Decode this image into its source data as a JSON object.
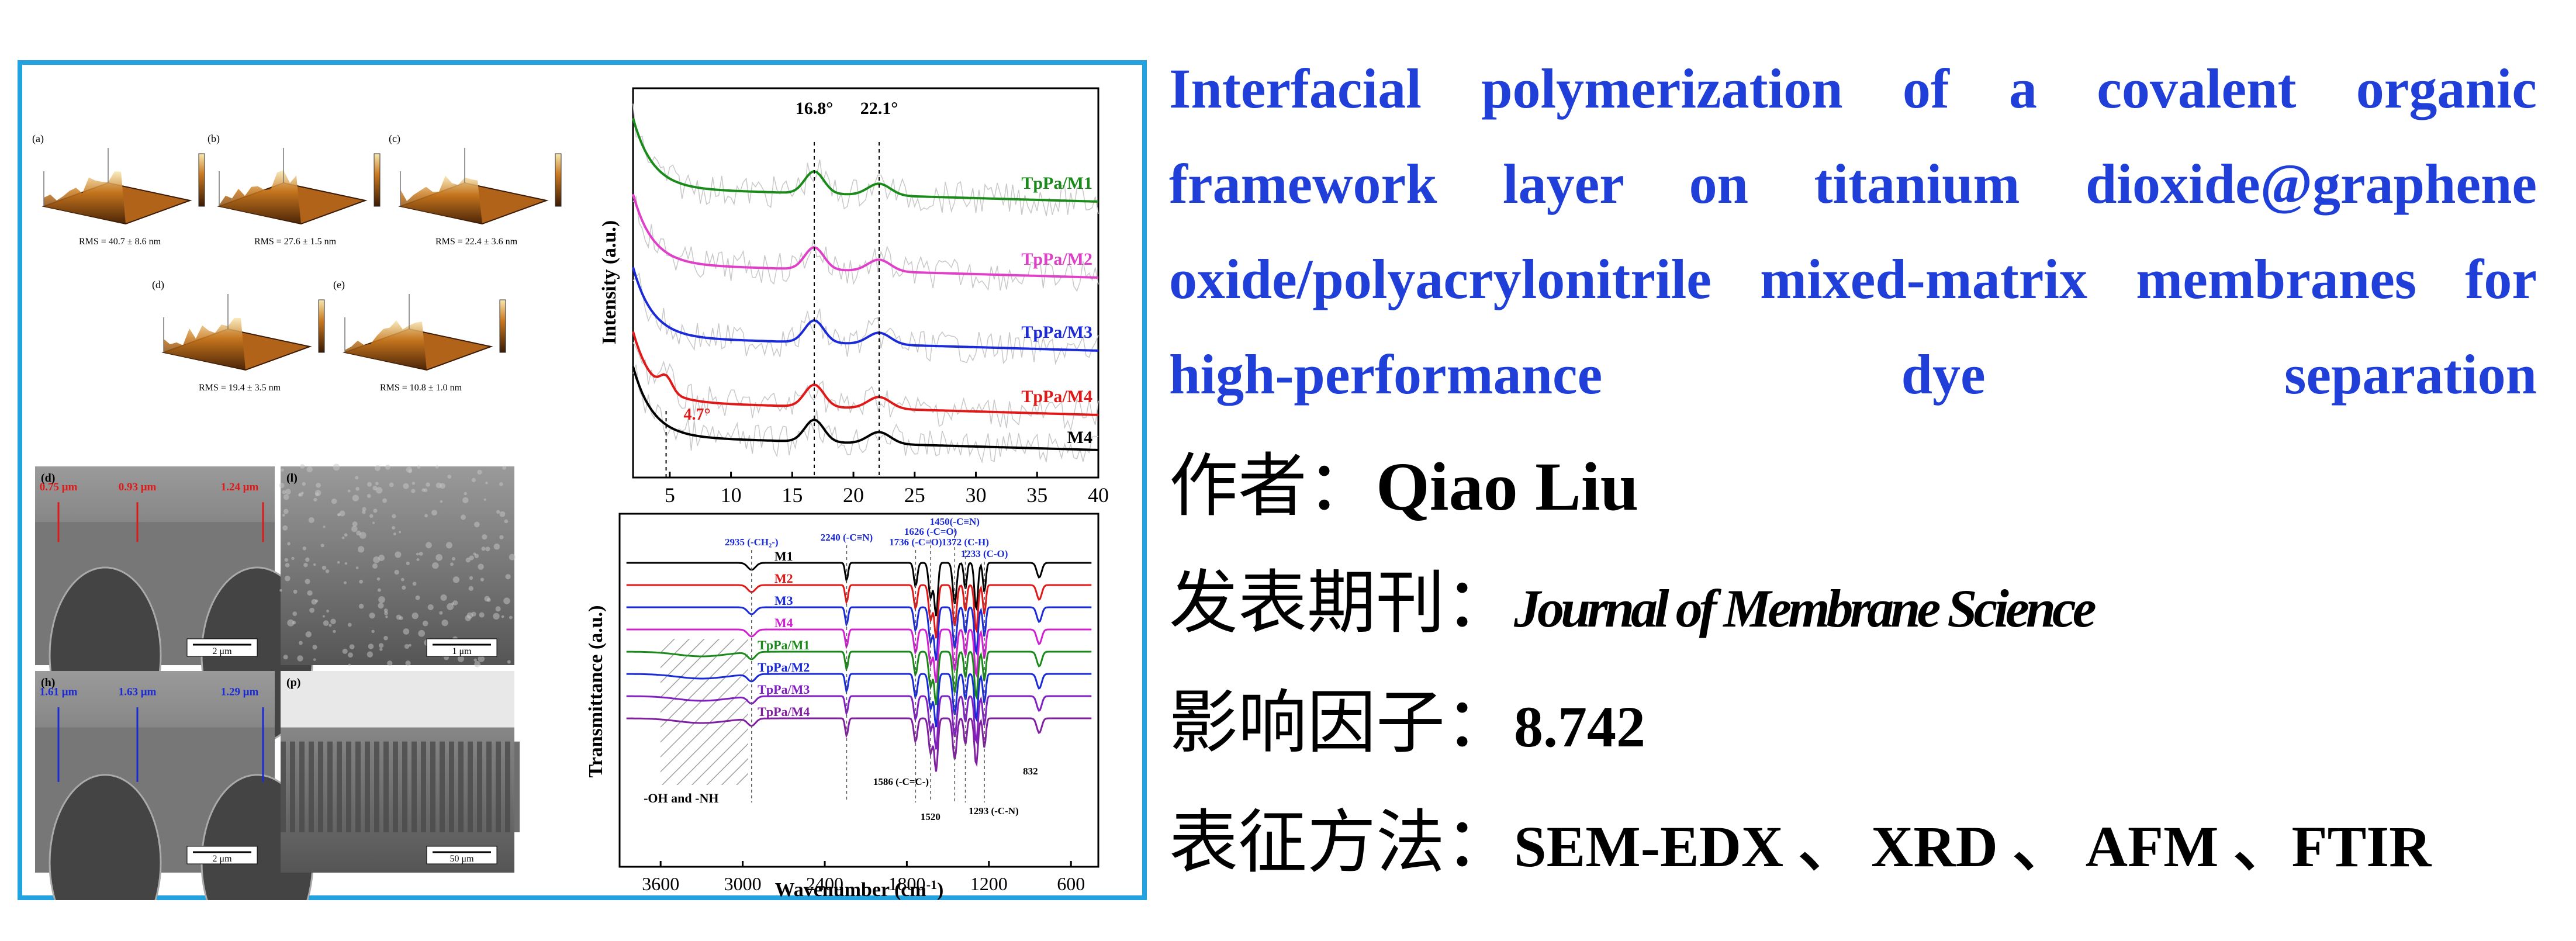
{
  "paper": {
    "title": "Interfacial polymerization of a covalent organic framework layer on titanium dioxide@graphene oxide/polyacrylonitrile mixed-matrix membranes for high-performance dye separation",
    "author_label": "作者：",
    "author": "Qiao Liu",
    "journal_label": "发表期刊：",
    "journal": "Journal of Membrane Science",
    "impact_label": "影响因子：",
    "impact_factor": "8.742",
    "methods_label": "表征方法：",
    "methods": "SEM-EDX 、 XRD 、 AFM 、FTIR"
  },
  "afm": [
    {
      "label": "(a)",
      "rms": "RMS = 40.7 ± 8.6 nm"
    },
    {
      "label": "(b)",
      "rms": "RMS = 27.6 ± 1.5 nm"
    },
    {
      "label": "(c)",
      "rms": "RMS = 22.4 ± 3.6 nm"
    },
    {
      "label": "(d)",
      "rms": "RMS = 19.4 ± 3.5 nm"
    },
    {
      "label": "(e)",
      "rms": "RMS = 10.8 ± 1.0 nm"
    }
  ],
  "sem": [
    {
      "label": "(d)",
      "scale": "2 μm",
      "thick": [
        "0.75 μm",
        "0.93 μm",
        "1.24 μm"
      ]
    },
    {
      "label": "(l)",
      "scale": "1 μm",
      "thick": []
    },
    {
      "label": "(h)",
      "scale": "2 μm",
      "thick": [
        "1.61 μm",
        "1.63 μm",
        "1.29 μm"
      ]
    },
    {
      "label": "(p)",
      "scale": "50 μm",
      "thick": []
    }
  ],
  "chart_data": [
    {
      "type": "line",
      "ylabel": "Intensity (a.u.)",
      "xlim": [
        2,
        40
      ],
      "xticks": [
        5,
        10,
        15,
        20,
        25,
        30,
        35,
        40
      ],
      "series": [
        {
          "name": "TpPa/M1",
          "color": "#1a8a1a"
        },
        {
          "name": "TpPa/M2",
          "color": "#e040c8"
        },
        {
          "name": "TpPa/M3",
          "color": "#1a2ad8"
        },
        {
          "name": "TpPa/M4",
          "color": "#e01818"
        },
        {
          "name": "M4",
          "color": "#000000"
        }
      ],
      "annotations": [
        {
          "text": "16.8°",
          "x": 16.8
        },
        {
          "text": "22.1°",
          "x": 22.1
        },
        {
          "text": "4.7°",
          "x": 4.7,
          "color": "#e01818"
        }
      ]
    },
    {
      "type": "line",
      "xlabel": "Wavenumber (cm",
      "xlabel_sup": "-1",
      "xlabel_end": ")",
      "ylabel": "Transmittance (a.u.)",
      "xlim": [
        3900,
        400
      ],
      "xticks": [
        3600,
        3000,
        2400,
        1800,
        1200,
        600
      ],
      "series": [
        {
          "name": "M1",
          "color": "#000000"
        },
        {
          "name": "M2",
          "color": "#e01818"
        },
        {
          "name": "M3",
          "color": "#1a2ad8"
        },
        {
          "name": "M4",
          "color": "#d020d0"
        },
        {
          "name": "TpPa/M1",
          "color": "#1a8a1a"
        },
        {
          "name": "TpPa/M2",
          "color": "#1a2ad8"
        },
        {
          "name": "TpPa/M3",
          "color": "#8020c0"
        },
        {
          "name": "TpPa/M4",
          "color": "#8020a0"
        }
      ],
      "annotations": [
        {
          "text": "2935 (-CH₂-)",
          "x": 2935
        },
        {
          "text": "2240 (-C≡N)",
          "x": 2240
        },
        {
          "text": "1736 (-C=O)",
          "x": 1736
        },
        {
          "text": "1626 (-C=O)",
          "x": 1626
        },
        {
          "text": "1450(-C≡N)",
          "x": 1450
        },
        {
          "text": "1372 (C-H)",
          "x": 1372
        },
        {
          "text": "1233 (C-O)",
          "x": 1233
        },
        {
          "text": "-OH and -NH",
          "x": 3300
        },
        {
          "text": "1586 (-C=C-)",
          "x": 1586
        },
        {
          "text": "1520",
          "x": 1520
        },
        {
          "text": "1293 (-C-N)",
          "x": 1293
        },
        {
          "text": "832",
          "x": 832
        }
      ]
    }
  ]
}
